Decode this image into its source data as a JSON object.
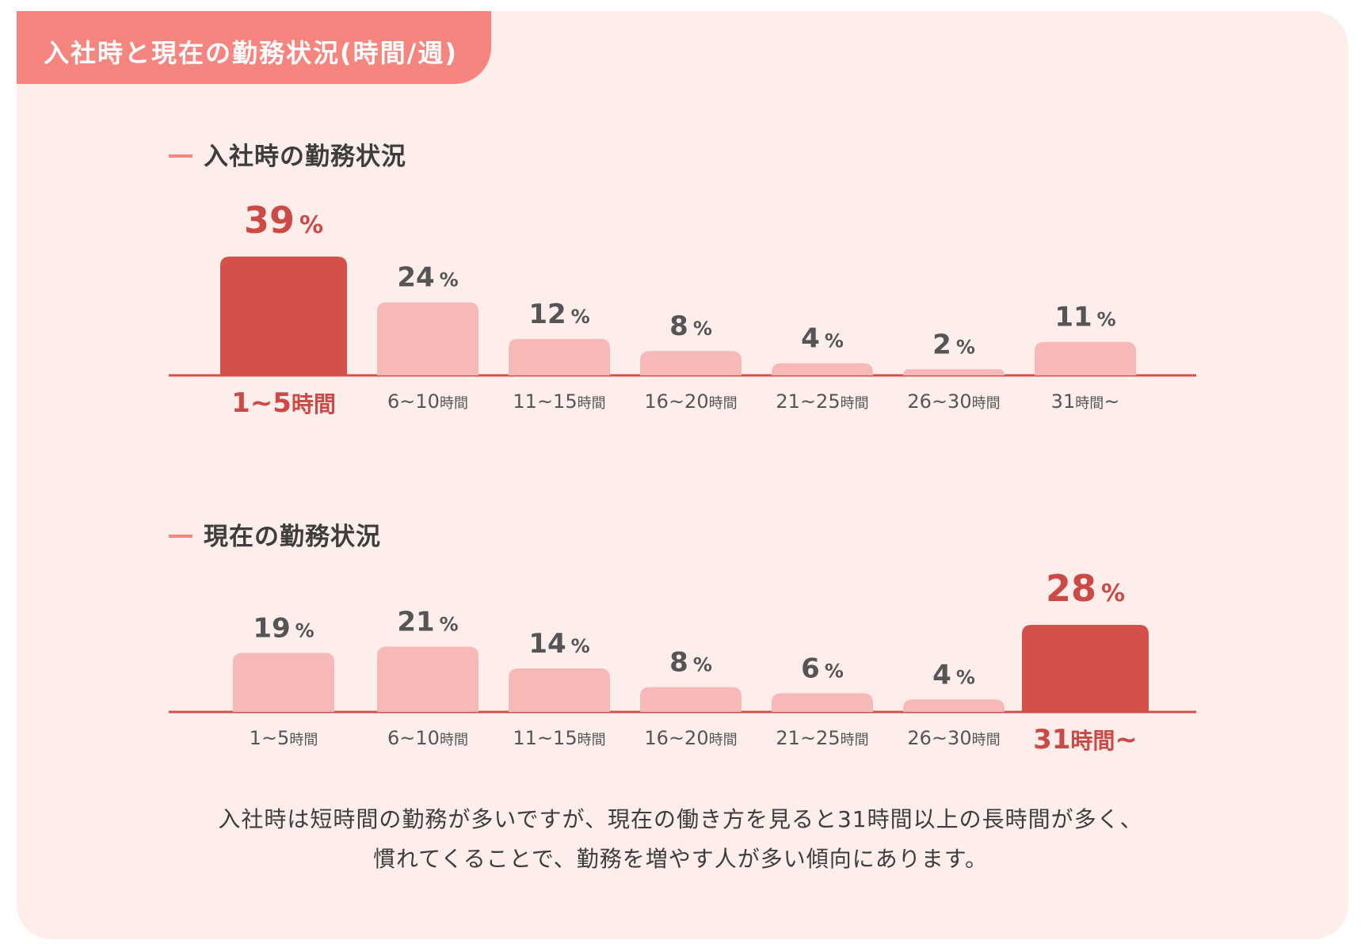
{
  "header": {
    "title": "入社時と現在の勤務状況(時間/週)"
  },
  "colors": {
    "highlight": "#d4504a",
    "normal": "#f7b8b8",
    "baseline": "#d4504a",
    "value_normal": "#555555",
    "value_highlight": "#cc4a45",
    "header": "#f6857f"
  },
  "chart_data": [
    {
      "type": "bar",
      "title": "入社時の勤務状況",
      "categories": [
        "1~5時間",
        "6~10時間",
        "11~15時間",
        "16~20時間",
        "21~25時間",
        "26~30時間",
        "31時間~"
      ],
      "series": [
        {
          "values": [
            39,
            24,
            12,
            8,
            4,
            2,
            11
          ]
        }
      ],
      "unit": "%",
      "highlight_index": 0,
      "ylim": [
        0,
        39
      ]
    },
    {
      "type": "bar",
      "title": "現在の勤務状況",
      "categories": [
        "1~5時間",
        "6~10時間",
        "11~15時間",
        "16~20時間",
        "21~25時間",
        "26~30時間",
        "31時間~"
      ],
      "series": [
        {
          "values": [
            19,
            21,
            14,
            8,
            6,
            4,
            28
          ]
        }
      ],
      "unit": "%",
      "highlight_index": 6,
      "ylim": [
        0,
        28
      ]
    }
  ],
  "note": {
    "line1": "入社時は短時間の勤務が多いですが、現在の働き方を見ると31時間以上の長時間が多く、",
    "line2": "慣れてくることで、勤務を増やす人が多い傾向にあります。"
  }
}
